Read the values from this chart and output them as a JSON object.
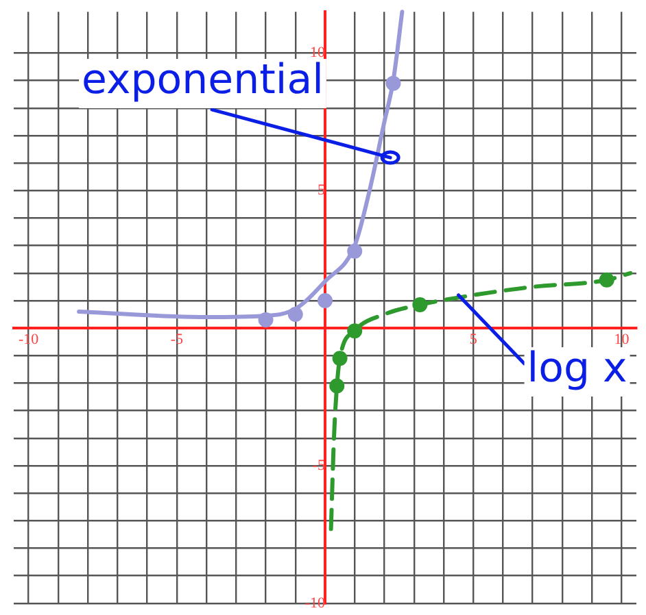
{
  "chart_data": {
    "type": "line",
    "grid": true,
    "xlim": [
      -10.5,
      10.5
    ],
    "ylim": [
      -10,
      11.5
    ],
    "xticks": [
      -10,
      {
        "value": -9,
        "label": null
      },
      {
        "value": -8,
        "label": null
      },
      {
        "value": -7,
        "label": null
      },
      {
        "value": -6,
        "label": null
      },
      -5,
      {
        "value": -4,
        "label": null
      },
      {
        "value": -3,
        "label": null
      },
      {
        "value": -2,
        "label": null
      },
      {
        "value": -1,
        "label": null
      },
      {
        "value": 1,
        "label": null
      },
      {
        "value": 2,
        "label": null
      },
      {
        "value": 3,
        "label": null
      },
      {
        "value": 4,
        "label": null
      },
      5,
      {
        "value": 6,
        "label": null
      },
      {
        "value": 7,
        "label": null
      },
      {
        "value": 8,
        "label": null
      },
      {
        "value": 9,
        "label": null
      },
      10
    ],
    "yticks": [
      -10,
      {
        "value": -9,
        "label": null
      },
      {
        "value": -8,
        "label": null
      },
      {
        "value": -7,
        "label": null
      },
      {
        "value": -6,
        "label": null
      },
      -5,
      {
        "value": -4,
        "label": null
      },
      {
        "value": -3,
        "label": null
      },
      {
        "value": -2,
        "label": null
      },
      {
        "value": -1,
        "label": null
      },
      {
        "value": 1,
        "label": null
      },
      {
        "value": 2,
        "label": null
      },
      {
        "value": 3,
        "label": null
      },
      {
        "value": 4,
        "label": null
      },
      5,
      {
        "value": 6,
        "label": null
      },
      {
        "value": 7,
        "label": null
      },
      {
        "value": 8,
        "label": null
      },
      {
        "value": 9,
        "label": null
      },
      10
    ],
    "series": [
      {
        "type": "line",
        "color": "#9999d9",
        "marker": "none",
        "x": [
          -8.3,
          -4,
          -2,
          -1,
          0,
          1,
          1.5,
          2,
          2.3,
          2.6
        ],
        "values": [
          0.6,
          0.4,
          0.45,
          0.7,
          1.7,
          3,
          5,
          7.5,
          9,
          11.5
        ]
      },
      {
        "type": "scatter",
        "color": "#9999d9",
        "marker": "circle",
        "x": [
          -2,
          -1,
          0,
          1,
          2.3
        ],
        "values": [
          0.3,
          0.5,
          1,
          2.8,
          8.9
        ]
      },
      {
        "type": "line",
        "color": "#2e9a2e",
        "marker": "none",
        "line_style": "dashed",
        "x": [
          0.2,
          0.3,
          0.4,
          0.5,
          1,
          2,
          3.2,
          5,
          7,
          9.5,
          10.3
        ],
        "values": [
          -7.3,
          -4,
          -2.1,
          -1.1,
          -0.1,
          0.5,
          0.85,
          1.2,
          1.5,
          1.75,
          2
        ]
      },
      {
        "type": "scatter",
        "color": "#2e9a2e",
        "marker": "circle",
        "x": [
          0.4,
          0.5,
          1,
          3.2,
          9.5
        ],
        "values": [
          -2.1,
          -1.1,
          -0.1,
          0.85,
          1.75
        ]
      }
    ],
    "annotations": [
      {
        "text": "exponential",
        "x": 2.2,
        "y": 6.2
      },
      {
        "text": "log x",
        "x": 4.5,
        "y": 1.2
      }
    ]
  }
}
